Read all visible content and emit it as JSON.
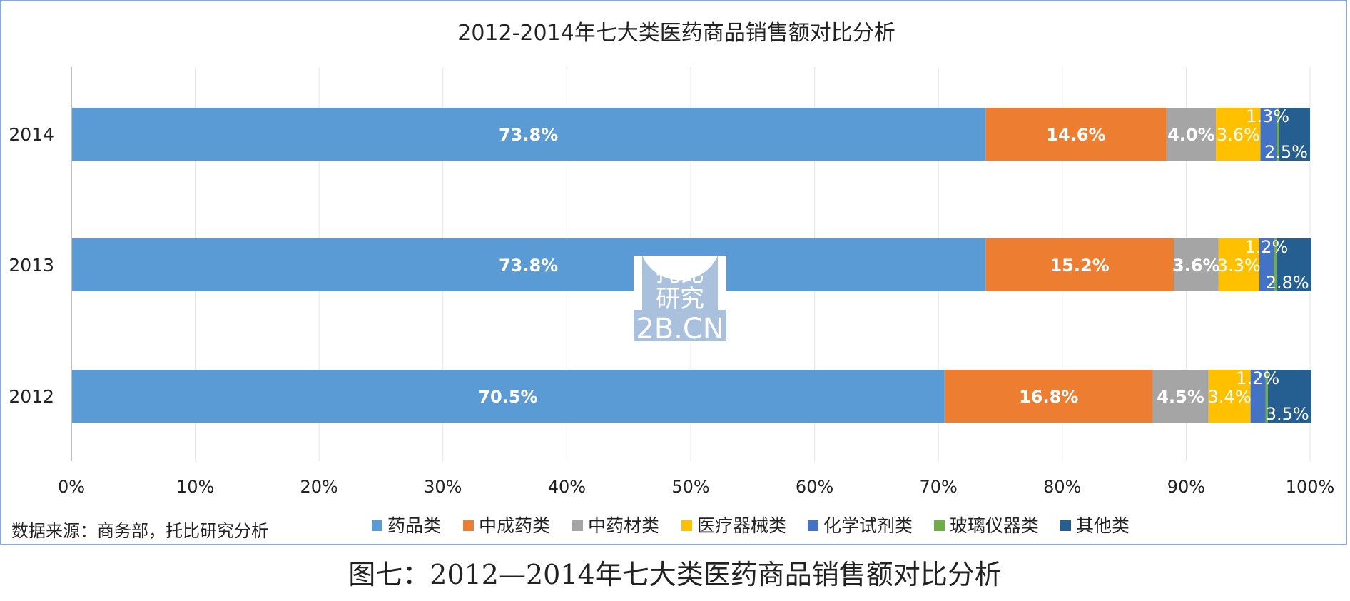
{
  "chart_data": {
    "type": "bar",
    "orientation": "horizontal",
    "stacked": true,
    "title": "2012-2014年七大类医药商品销售额对比分析",
    "categories": [
      "2014",
      "2013",
      "2012"
    ],
    "series": [
      {
        "name": "药品类",
        "color": "#5b9bd5",
        "values": [
          73.8,
          73.8,
          70.5
        ],
        "labels": [
          "73.8%",
          "73.8%",
          "70.5%"
        ]
      },
      {
        "name": "中成药类",
        "color": "#ed7d31",
        "values": [
          14.6,
          15.2,
          16.8
        ],
        "labels": [
          "14.6%",
          "15.2%",
          "16.8%"
        ]
      },
      {
        "name": "中药材类",
        "color": "#a5a5a5",
        "values": [
          4.0,
          3.6,
          4.5
        ],
        "labels": [
          "4.0%",
          "3.6%",
          "4.5%"
        ]
      },
      {
        "name": "医疗器械类",
        "color": "#ffc000",
        "values": [
          3.6,
          3.3,
          3.4
        ],
        "labels": [
          "3.6%",
          "3.3%",
          "3.4%"
        ]
      },
      {
        "name": "化学试剂类",
        "color": "#4472c4",
        "values": [
          1.3,
          1.2,
          1.2
        ],
        "labels": [
          "1.3%",
          "1.2%",
          "1.2%"
        ]
      },
      {
        "name": "玻璃仪器类",
        "color": "#70ad47",
        "values": [
          0.2,
          0.2,
          0.2
        ],
        "labels": [
          "",
          "",
          ""
        ]
      },
      {
        "name": "其他类",
        "color": "#255e91",
        "values": [
          2.5,
          2.8,
          3.5
        ],
        "labels": [
          "2.5%",
          "2.8%",
          "3.5%"
        ]
      }
    ],
    "xlim": [
      0,
      100
    ],
    "xticks": [
      "0%",
      "10%",
      "20%",
      "30%",
      "40%",
      "50%",
      "60%",
      "70%",
      "80%",
      "90%",
      "100%"
    ],
    "grid": true,
    "legend_position": "bottom"
  },
  "source_note": "数据来源：商务部，托比研究分析",
  "watermark": {
    "line1": "托比",
    "line2": "研究",
    "url": "2B.CN"
  },
  "caption": "图七：2012—2014年七大类医药商品销售额对比分析"
}
